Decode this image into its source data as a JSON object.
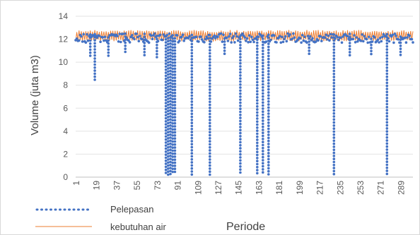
{
  "chart_data": {
    "type": "line",
    "title": "",
    "xlabel": "Periode",
    "ylabel": "Volume (juta m3)",
    "ylim": [
      0,
      14
    ],
    "yticks": [
      0,
      2,
      4,
      6,
      8,
      10,
      12,
      14
    ],
    "xlim": [
      1,
      300
    ],
    "xticks": [
      1,
      19,
      37,
      55,
      73,
      91,
      109,
      127,
      145,
      163,
      181,
      199,
      217,
      235,
      253,
      271,
      289
    ],
    "grid": "horizontal",
    "legend_position": "bottom-left",
    "series": [
      {
        "name": "Pelepasan",
        "style": "dotted",
        "color": "#4472C4",
        "description_points": {
          "baseline_range": [
            11.5,
            12.5
          ],
          "dips": [
            {
              "period": 14,
              "min": 10.4
            },
            {
              "period": 18,
              "min": 8.4
            },
            {
              "period": 30,
              "min": 10.4
            },
            {
              "period": 45,
              "min": 10.8
            },
            {
              "period": 62,
              "min": 10.4
            },
            {
              "period": 73,
              "min": 10.4
            },
            {
              "period": 81,
              "min": 0.2
            },
            {
              "period": 83,
              "min": 0.2
            },
            {
              "period": 85,
              "min": 0.2
            },
            {
              "period": 87,
              "min": 0.2
            },
            {
              "period": 89,
              "min": 0.2
            },
            {
              "period": 104,
              "min": 0.2
            },
            {
              "period": 120,
              "min": 0.2
            },
            {
              "period": 133,
              "min": 10.5
            },
            {
              "period": 147,
              "min": 0.2
            },
            {
              "period": 162,
              "min": 0.2
            },
            {
              "period": 167,
              "min": 0.2
            },
            {
              "period": 172,
              "min": 0.2
            },
            {
              "period": 208,
              "min": 10.5
            },
            {
              "period": 230,
              "min": 0.2
            },
            {
              "period": 244,
              "min": 10.5
            },
            {
              "period": 263,
              "min": 10.5
            },
            {
              "period": 277,
              "min": 0.2
            },
            {
              "period": 289,
              "min": 10.5
            }
          ]
        }
      },
      {
        "name": "kebutuhan air",
        "style": "solid",
        "color": "#ED7D31",
        "description_points": {
          "oscillation_range": [
            11.8,
            12.8
          ]
        }
      }
    ]
  }
}
